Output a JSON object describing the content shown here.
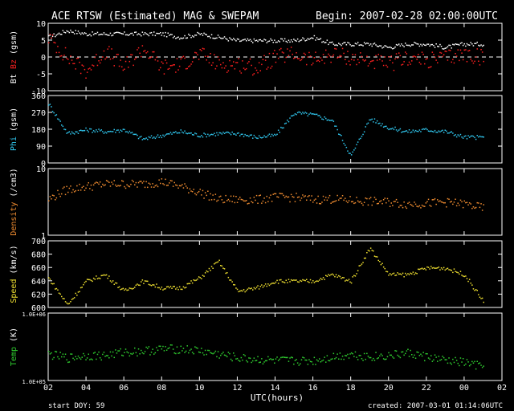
{
  "header": {
    "title": "ACE RTSW (Estimated) MAG & SWEPAM",
    "begin": "Begin: 2007-02-28 02:00:00UTC"
  },
  "footer": {
    "start_doy": "start DOY:  59",
    "created": "created: 2007-03-01 01:14:06UTC"
  },
  "colors": {
    "bt": "#ffffff",
    "bz": "#ff2020",
    "phi": "#30c8f0",
    "density": "#f08c30",
    "speed": "#f0e030",
    "temp": "#30d030"
  },
  "chart_data": [
    {
      "type": "scatter",
      "id": "mag",
      "ylabel": "Bt Bz (gsm)",
      "ylabel_parts": [
        "Bt",
        "Bz",
        "(gsm)"
      ],
      "yticks": [
        "10",
        "5",
        "0",
        "-5",
        "-10"
      ],
      "ylim": [
        -10,
        10
      ],
      "zero_line": true,
      "series": [
        {
          "name": "Bt",
          "color": "#ffffff",
          "x": [
            2,
            3,
            4,
            5,
            6,
            7,
            8,
            9,
            10,
            11,
            12,
            13,
            14,
            15,
            16,
            17,
            18,
            19,
            20,
            21,
            22,
            23,
            24,
            25
          ],
          "y": [
            6,
            8,
            7,
            7,
            7,
            7,
            7,
            6,
            7,
            6,
            5,
            5,
            5,
            5,
            6,
            4,
            4,
            4,
            3,
            4,
            4,
            3,
            4,
            4
          ]
        },
        {
          "name": "Bz",
          "color": "#ff2020",
          "x": [
            2,
            3,
            4,
            5,
            6,
            7,
            8,
            9,
            10,
            11,
            12,
            13,
            14,
            15,
            16,
            17,
            18,
            19,
            20,
            21,
            22,
            23,
            24,
            25
          ],
          "y": [
            6,
            0,
            -4,
            2,
            -3,
            3,
            -3,
            -2,
            1,
            -2,
            -2,
            -3,
            0,
            1,
            -1,
            1,
            0,
            -1,
            -2,
            0,
            -1,
            0,
            1,
            0
          ]
        }
      ]
    },
    {
      "type": "scatter",
      "id": "phi",
      "ylabel": "Phi (gsm)",
      "ylabel_parts": [
        "Phi",
        "(gsm)"
      ],
      "yticks": [
        "360",
        "270",
        "180",
        "90",
        "0"
      ],
      "ylim": [
        0,
        360
      ],
      "series": [
        {
          "name": "Phi",
          "color": "#30c8f0",
          "x": [
            2,
            3,
            4,
            5,
            6,
            7,
            8,
            9,
            10,
            11,
            12,
            13,
            14,
            15,
            16,
            17,
            18,
            19,
            20,
            21,
            22,
            23,
            24,
            25
          ],
          "y": [
            320,
            160,
            180,
            170,
            180,
            130,
            150,
            170,
            150,
            160,
            160,
            140,
            150,
            270,
            260,
            230,
            40,
            240,
            190,
            170,
            180,
            170,
            140,
            140
          ]
        }
      ]
    },
    {
      "type": "scatter",
      "id": "density",
      "ylabel": "Density (/cm3)",
      "ylabel_parts": [
        "Density",
        "(/cm3)"
      ],
      "yticks": [
        "10",
        "1"
      ],
      "yscale": "log",
      "ylim": [
        1,
        10
      ],
      "series": [
        {
          "name": "Density",
          "color": "#f08c30",
          "x": [
            2,
            3,
            4,
            5,
            6,
            7,
            8,
            9,
            10,
            11,
            12,
            13,
            14,
            15,
            16,
            17,
            18,
            19,
            20,
            21,
            22,
            23,
            24,
            25
          ],
          "y": [
            3.5,
            5,
            5.5,
            6,
            6,
            6,
            6.5,
            5.5,
            4.5,
            3.5,
            3.5,
            3.5,
            3.8,
            3.8,
            3.5,
            3.6,
            3.4,
            3.3,
            3.2,
            3,
            3.1,
            3.2,
            3,
            2.6
          ]
        }
      ]
    },
    {
      "type": "scatter",
      "id": "speed",
      "ylabel": "Speed (km/s)",
      "ylabel_parts": [
        "Speed",
        "(km/s)"
      ],
      "yticks": [
        "700",
        "680",
        "660",
        "640",
        "620",
        "600"
      ],
      "ylim": [
        600,
        700
      ],
      "series": [
        {
          "name": "Speed",
          "color": "#f0e030",
          "x": [
            2,
            3,
            4,
            5,
            6,
            7,
            8,
            9,
            10,
            11,
            12,
            13,
            14,
            15,
            16,
            17,
            18,
            19,
            20,
            21,
            22,
            23,
            24,
            25
          ],
          "y": [
            645,
            605,
            640,
            650,
            625,
            640,
            630,
            630,
            645,
            670,
            625,
            630,
            640,
            640,
            640,
            650,
            640,
            690,
            650,
            650,
            660,
            660,
            650,
            610
          ]
        }
      ]
    },
    {
      "type": "scatter",
      "id": "temp",
      "ylabel": "Temp (K)",
      "ylabel_parts": [
        "Temp",
        "(K)"
      ],
      "yticks": [
        "1.0E+06",
        "1.0E+05"
      ],
      "yscale": "log",
      "ylim": [
        100000,
        1000000
      ],
      "series": [
        {
          "name": "Temp",
          "color": "#30d030",
          "x": [
            2,
            3,
            4,
            5,
            6,
            7,
            8,
            9,
            10,
            11,
            12,
            13,
            14,
            15,
            16,
            17,
            18,
            19,
            20,
            21,
            22,
            23,
            24,
            25
          ],
          "y": [
            250000,
            220000,
            240000,
            240000,
            270000,
            280000,
            300000,
            300000,
            280000,
            250000,
            220000,
            210000,
            200000,
            200000,
            200000,
            230000,
            250000,
            230000,
            240000,
            260000,
            230000,
            200000,
            190000,
            160000
          ]
        }
      ]
    }
  ],
  "x_axis": {
    "label": "UTC(hours)",
    "ticks": [
      "02",
      "04",
      "06",
      "08",
      "10",
      "12",
      "14",
      "16",
      "18",
      "20",
      "22",
      "00",
      "02"
    ],
    "xlim": [
      2,
      26
    ]
  }
}
